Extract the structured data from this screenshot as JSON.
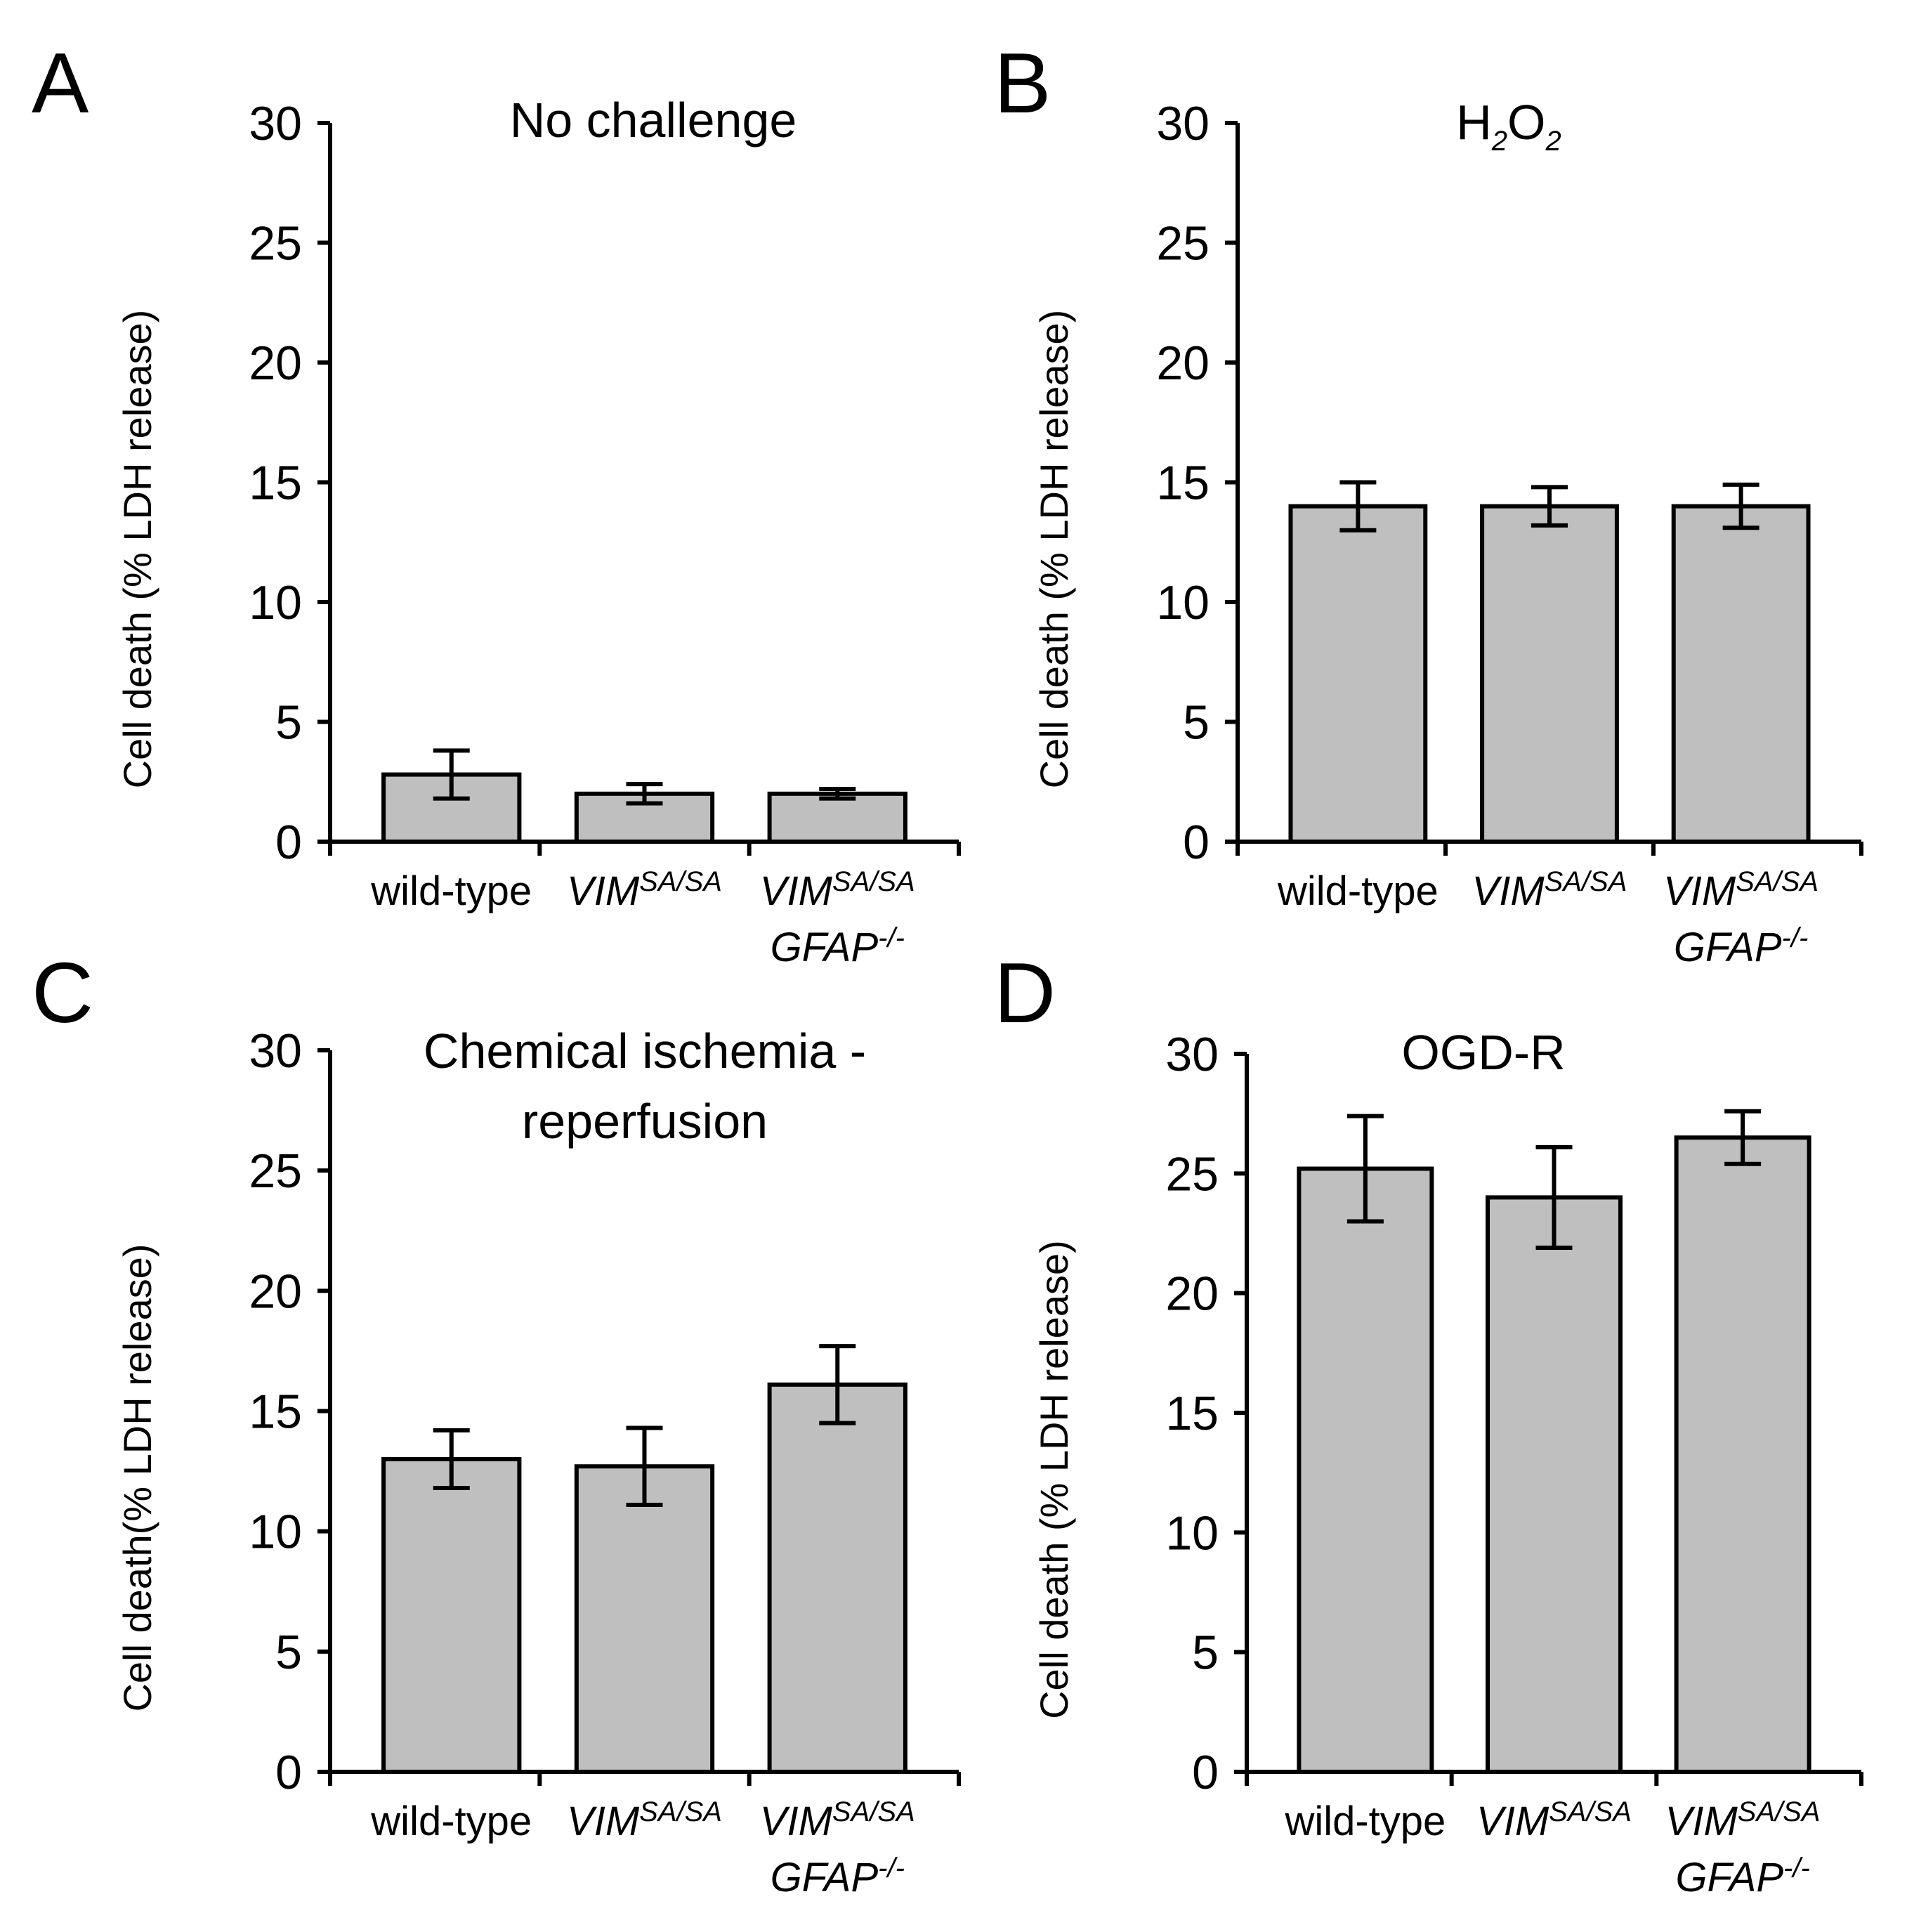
{
  "chart_data": [
    {
      "type": "bar",
      "panel": "A",
      "title": "No challenge",
      "title_lines": [
        "No challenge"
      ],
      "ylabel": "Cell death  (% LDH release)",
      "ylim": [
        0,
        30
      ],
      "yticks": [
        "0",
        "5",
        "10",
        "15",
        "20",
        "25",
        "30"
      ],
      "categories": [
        "wild-type",
        "VIM SA/SA",
        "VIM SA/SA GFAP -/-"
      ],
      "values": [
        2.8,
        2.0,
        2.0
      ],
      "errors": [
        1.0,
        0.4,
        0.2
      ],
      "bar_color": "#bfbfbf"
    },
    {
      "type": "bar",
      "panel": "B",
      "title": "H2O2",
      "title_parts": {
        "h": "H",
        "sub1": "2",
        "o": "O",
        "sub2": "2"
      },
      "ylabel": "Cell death  (% LDH release)",
      "ylim": [
        0,
        30
      ],
      "yticks": [
        "0",
        "5",
        "10",
        "15",
        "20",
        "25",
        "30"
      ],
      "categories": [
        "wild-type",
        "VIM SA/SA",
        "VIM SA/SA GFAP -/-"
      ],
      "values": [
        14.0,
        14.0,
        14.0
      ],
      "errors": [
        1.0,
        0.8,
        0.9
      ],
      "bar_color": "#bfbfbf"
    },
    {
      "type": "bar",
      "panel": "C",
      "title": "Chemical ischemia - reperfusion",
      "title_lines": [
        "Chemical ischemia -",
        "reperfusion"
      ],
      "ylabel": "Cell death(%  LDH release)",
      "ylim": [
        0,
        30
      ],
      "yticks": [
        "0",
        "5",
        "10",
        "15",
        "20",
        "25",
        "30"
      ],
      "categories": [
        "wild-type",
        "VIM SA/SA",
        "VIM SA/SA GFAP -/-"
      ],
      "values": [
        13.0,
        12.7,
        16.1
      ],
      "errors": [
        1.2,
        1.6,
        1.6
      ],
      "bar_color": "#bfbfbf"
    },
    {
      "type": "bar",
      "panel": "D",
      "title": "OGD-R",
      "title_lines": [
        "OGD-R"
      ],
      "ylabel": "Cell death  (% LDH release)",
      "ylim": [
        0,
        30
      ],
      "yticks": [
        "0",
        "5",
        "10",
        "15",
        "20",
        "25",
        "30"
      ],
      "categories": [
        "wild-type",
        "VIM SA/SA",
        "VIM SA/SA GFAP -/-"
      ],
      "values": [
        25.2,
        24.0,
        26.5
      ],
      "errors": [
        2.2,
        2.1,
        1.1
      ],
      "bar_color": "#bfbfbf"
    }
  ],
  "category_text": {
    "wt": "wild-type",
    "vim": "VIM",
    "vim_sup": "SA/SA",
    "gfap": "GFAP",
    "gfap_sup": "-/-"
  }
}
